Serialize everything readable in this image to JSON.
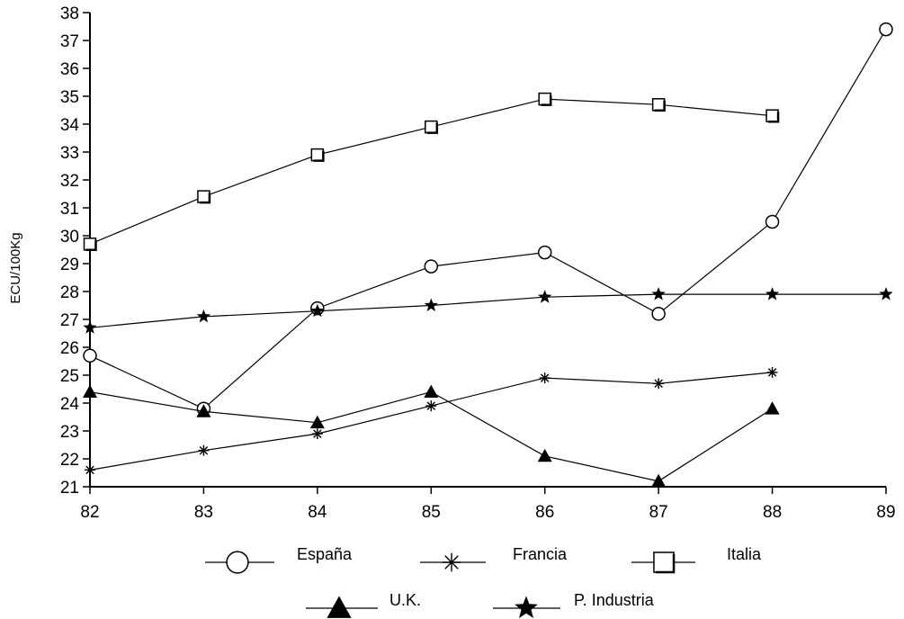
{
  "chart_data": {
    "type": "line",
    "title": "",
    "xlabel": "",
    "ylabel": "ECU/100Kg",
    "x": [
      "82",
      "83",
      "84",
      "85",
      "86",
      "87",
      "88",
      "89"
    ],
    "ylim": [
      21,
      38
    ],
    "yticks": [
      21,
      22,
      23,
      24,
      25,
      26,
      27,
      28,
      29,
      30,
      31,
      32,
      33,
      34,
      35,
      36,
      37,
      38
    ],
    "grid": false,
    "legend_position": "bottom",
    "series": [
      {
        "name": "España",
        "marker": "circle",
        "values": [
          25.7,
          23.8,
          27.4,
          28.9,
          29.4,
          27.2,
          30.5,
          37.4
        ]
      },
      {
        "name": "Francia",
        "marker": "asterisk",
        "values": [
          21.6,
          22.3,
          22.9,
          23.9,
          24.9,
          24.7,
          25.1,
          null
        ]
      },
      {
        "name": "Italia",
        "marker": "square",
        "values": [
          29.7,
          31.4,
          32.9,
          33.9,
          34.9,
          34.7,
          34.3,
          null
        ]
      },
      {
        "name": "U.K.",
        "marker": "triangle",
        "values": [
          24.4,
          23.7,
          23.3,
          24.4,
          22.1,
          21.2,
          23.8,
          null
        ]
      },
      {
        "name": "P. Industria",
        "marker": "star",
        "values": [
          26.7,
          27.1,
          27.3,
          27.5,
          27.8,
          27.9,
          27.9,
          27.9
        ]
      }
    ]
  }
}
